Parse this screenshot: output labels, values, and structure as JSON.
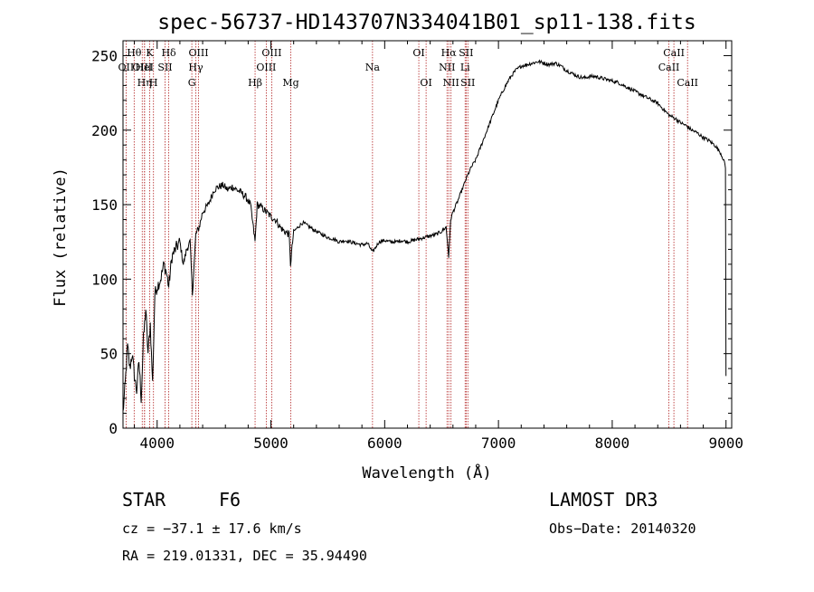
{
  "chart_data": {
    "type": "line",
    "title": "spec-56737-HD143707N334041B01_sp11-138.fits",
    "xlabel": "Wavelength (Å)",
    "ylabel": "Flux (relative)",
    "xlim": [
      3700,
      9050
    ],
    "ylim": [
      0,
      260
    ],
    "xticks": [
      4000,
      5000,
      6000,
      7000,
      8000,
      9000
    ],
    "yticks": [
      0,
      50,
      100,
      150,
      200,
      250
    ],
    "series": [
      {
        "name": "spectrum",
        "x": [
          3700,
          3720,
          3740,
          3760,
          3780,
          3800,
          3820,
          3840,
          3860,
          3880,
          3900,
          3920,
          3940,
          3960,
          3980,
          4000,
          4030,
          4060,
          4080,
          4102,
          4130,
          4160,
          4200,
          4230,
          4260,
          4290,
          4310,
          4340,
          4370,
          4400,
          4450,
          4500,
          4540,
          4580,
          4620,
          4660,
          4700,
          4740,
          4780,
          4820,
          4861,
          4880,
          4920,
          4960,
          5000,
          5040,
          5080,
          5120,
          5160,
          5172,
          5200,
          5240,
          5280,
          5320,
          5360,
          5400,
          5450,
          5500,
          5550,
          5600,
          5650,
          5700,
          5750,
          5800,
          5850,
          5893,
          5950,
          6000,
          6050,
          6100,
          6150,
          6200,
          6250,
          6300,
          6350,
          6400,
          6450,
          6500,
          6540,
          6563,
          6580,
          6600,
          6640,
          6680,
          6720,
          6760,
          6800,
          6850,
          6900,
          6950,
          7000,
          7050,
          7100,
          7150,
          7200,
          7250,
          7300,
          7350,
          7400,
          7450,
          7500,
          7550,
          7600,
          7650,
          7700,
          7750,
          7800,
          7850,
          7900,
          7950,
          8000,
          8050,
          8100,
          8150,
          8200,
          8250,
          8300,
          8350,
          8400,
          8450,
          8500,
          8550,
          8600,
          8650,
          8700,
          8750,
          8800,
          8850,
          8900,
          8950,
          8980,
          8995,
          9000
        ],
        "y": [
          10,
          30,
          55,
          40,
          50,
          35,
          25,
          45,
          20,
          60,
          80,
          50,
          70,
          30,
          90,
          95,
          100,
          110,
          105,
          95,
          115,
          120,
          125,
          110,
          120,
          125,
          90,
          130,
          135,
          145,
          150,
          160,
          162,
          163,
          160,
          162,
          160,
          158,
          155,
          150,
          125,
          150,
          148,
          145,
          142,
          140,
          135,
          132,
          130,
          110,
          132,
          135,
          138,
          136,
          134,
          132,
          130,
          128,
          127,
          125,
          126,
          125,
          124,
          123,
          124,
          118,
          125,
          126,
          125,
          125,
          126,
          125,
          126,
          127,
          128,
          129,
          130,
          132,
          135,
          115,
          140,
          145,
          152,
          160,
          168,
          175,
          180,
          190,
          200,
          210,
          220,
          228,
          235,
          240,
          243,
          244,
          245,
          246,
          245,
          244,
          245,
          243,
          240,
          238,
          236,
          235,
          236,
          236,
          235,
          234,
          233,
          232,
          230,
          228,
          226,
          224,
          222,
          220,
          218,
          214,
          210,
          208,
          205,
          203,
          200,
          198,
          195,
          193,
          190,
          185,
          180,
          175,
          35
        ]
      }
    ],
    "line_markers": [
      {
        "label": "OII",
        "wl": 3727,
        "row": 2
      },
      {
        "label": "Hθ",
        "wl": 3798,
        "row": 1
      },
      {
        "label": "OIII",
        "wl": 3869,
        "row": 2
      },
      {
        "label": "Hη",
        "wl": 3889,
        "row": 3
      },
      {
        "label": "HeI",
        "wl": 3889,
        "row": 2
      },
      {
        "label": "K",
        "wl": 3934,
        "row": 1
      },
      {
        "label": "H",
        "wl": 3968,
        "row": 3
      },
      {
        "label": "SII",
        "wl": 4070,
        "row": 2
      },
      {
        "label": "Hδ",
        "wl": 4102,
        "row": 1
      },
      {
        "label": "G",
        "wl": 4305,
        "row": 3
      },
      {
        "label": "Hγ",
        "wl": 4340,
        "row": 2
      },
      {
        "label": "OIII",
        "wl": 4364,
        "row": 1
      },
      {
        "label": "Hβ",
        "wl": 4861,
        "row": 3
      },
      {
        "label": "OIII",
        "wl": 4959,
        "row": 2
      },
      {
        "label": "OIII",
        "wl": 5007,
        "row": 1
      },
      {
        "label": "Mg",
        "wl": 5175,
        "row": 3
      },
      {
        "label": "Na",
        "wl": 5893,
        "row": 2
      },
      {
        "label": "OI",
        "wl": 6300,
        "row": 1
      },
      {
        "label": "OI",
        "wl": 6364,
        "row": 3
      },
      {
        "label": "NII",
        "wl": 6548,
        "row": 2
      },
      {
        "label": "Hα",
        "wl": 6563,
        "row": 1
      },
      {
        "label": "NII",
        "wl": 6583,
        "row": 3
      },
      {
        "label": "Li",
        "wl": 6707,
        "row": 2
      },
      {
        "label": "SII",
        "wl": 6716,
        "row": 1
      },
      {
        "label": "SII",
        "wl": 6731,
        "row": 3
      },
      {
        "label": "CaII",
        "wl": 8498,
        "row": 2
      },
      {
        "label": "CaII",
        "wl": 8542,
        "row": 1
      },
      {
        "label": "CaII",
        "wl": 8662,
        "row": 3
      }
    ]
  },
  "info": {
    "object_class": "STAR",
    "subclass": "F6",
    "survey": "LAMOST DR3",
    "cz": "cz = −37.1 ± 17.6 km/s",
    "obs_date": "Obs−Date: 20140320",
    "radec": "RA = 219.01331, DEC =  35.94490"
  },
  "colors": {
    "marker": "#b22222",
    "ink": "#000000"
  }
}
